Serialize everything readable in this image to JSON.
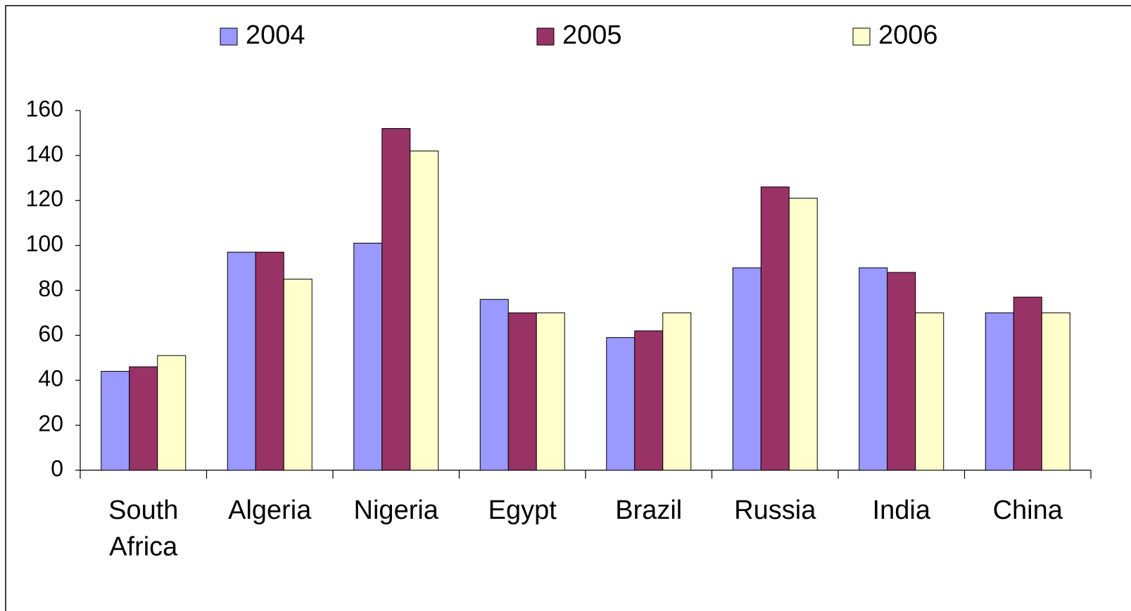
{
  "chart_data": {
    "type": "bar",
    "categories": [
      "South Africa",
      "Algeria",
      "Nigeria",
      "Egypt",
      "Brazil",
      "Russia",
      "India",
      "China"
    ],
    "series": [
      {
        "name": "2004",
        "color": "#9999ff",
        "values": [
          44,
          97,
          101,
          76,
          59,
          90,
          90,
          70
        ]
      },
      {
        "name": "2005",
        "color": "#993366",
        "values": [
          46,
          97,
          152,
          70,
          62,
          126,
          88,
          77
        ]
      },
      {
        "name": "2006",
        "color": "#ffffcc",
        "values": [
          51,
          85,
          142,
          70,
          70,
          121,
          70,
          70
        ]
      }
    ],
    "ylim": [
      0,
      160
    ],
    "yticks": [
      0,
      20,
      40,
      60,
      80,
      100,
      120,
      140,
      160
    ],
    "grid": false,
    "legend": "top"
  }
}
